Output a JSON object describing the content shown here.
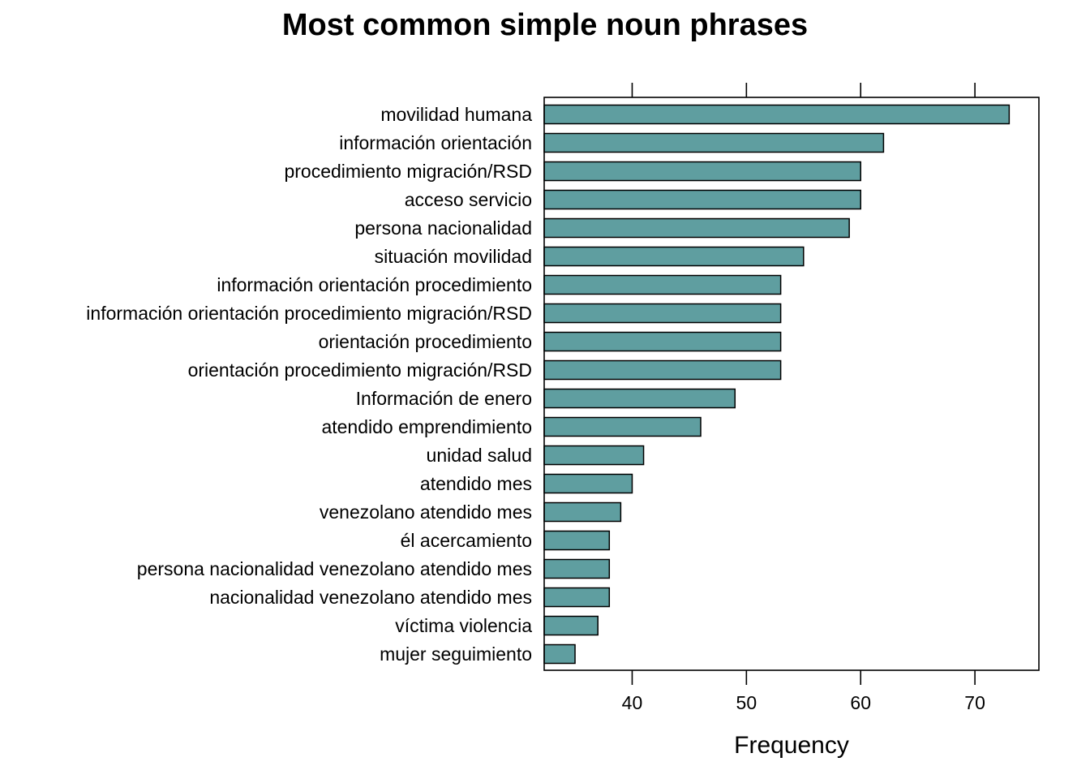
{
  "chart_data": {
    "type": "bar",
    "orientation": "horizontal",
    "title": "Most common simple noun phrases",
    "xlabel": "Frequency",
    "ylabel": "",
    "xlim": [
      32.3,
      75.6
    ],
    "xticks": [
      40,
      50,
      60,
      70
    ],
    "tick_labels": [
      "40",
      "50",
      "60",
      "70"
    ],
    "ticks_top": true,
    "grid": false,
    "bar_color": "#5f9ea0",
    "bar_edge_color": "#000000",
    "categories": [
      "movilidad humana",
      "información orientación",
      "procedimiento migración/RSD",
      "acceso servicio",
      "persona nacionalidad",
      "situación movilidad",
      "información orientación procedimiento",
      "información orientación procedimiento migración/RSD",
      "orientación procedimiento",
      "orientación procedimiento migración/RSD",
      "Información de enero",
      "atendido emprendimiento",
      "unidad salud",
      "atendido mes",
      "venezolano atendido mes",
      "él acercamiento",
      "persona nacionalidad venezolano atendido mes",
      "nacionalidad venezolano atendido mes",
      "víctima violencia",
      "mujer seguimiento"
    ],
    "values": [
      73,
      62,
      60,
      60,
      59,
      55,
      53,
      53,
      53,
      53,
      49,
      46,
      41,
      40,
      39,
      38,
      38,
      38,
      37,
      35
    ]
  }
}
